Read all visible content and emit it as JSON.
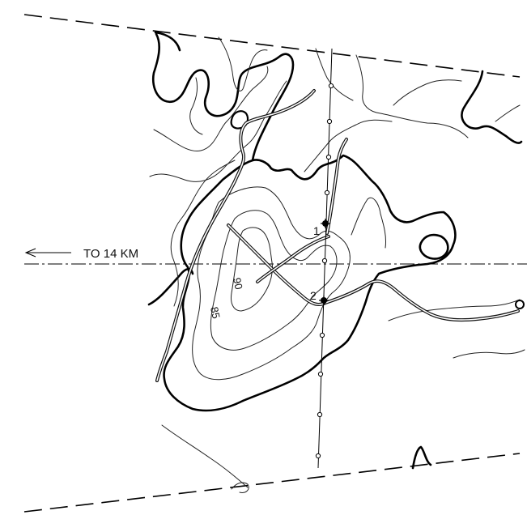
{
  "map": {
    "direction_label": "TO 14 KM",
    "contour_labels": [
      "90",
      "85"
    ],
    "points": [
      {
        "label": "1"
      },
      {
        "label": "2"
      }
    ]
  }
}
